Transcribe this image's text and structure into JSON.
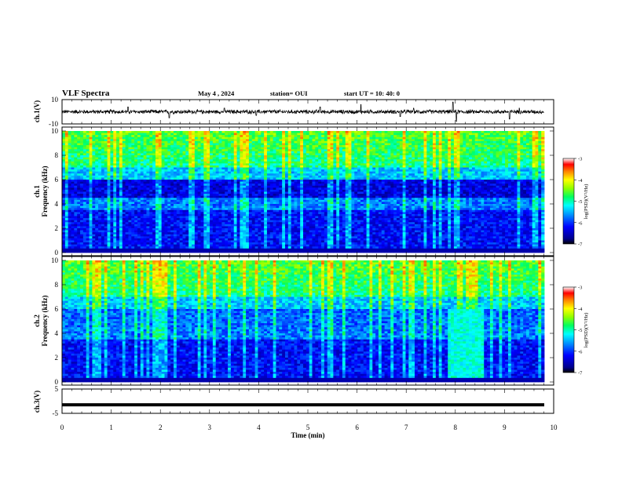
{
  "header": {
    "title": "VLF Spectra",
    "date": "May 4 , 2024",
    "station": "station= OUI",
    "start": "start UT =  10: 40: 0"
  },
  "chart_data": {
    "type": "heatmap",
    "x_axis": {
      "label": "Time (min)",
      "range": [
        0,
        10
      ],
      "ticks": [
        "0",
        "1",
        "2",
        "3",
        "4",
        "5",
        "6",
        "7",
        "8",
        "9",
        "10"
      ]
    },
    "panels": [
      {
        "id": "ch1-waveform",
        "type": "line",
        "ylabel": "ch.1(V)",
        "ylim": [
          -10,
          10
        ],
        "yticks": [
          "10",
          "-10"
        ],
        "baseline": 0,
        "noise_amplitude": 2,
        "spikes": [
          {
            "t": 1.34,
            "v": 4
          },
          {
            "t": 2.18,
            "v": -5
          },
          {
            "t": 3.3,
            "v": 3
          },
          {
            "t": 3.95,
            "v": -3
          },
          {
            "t": 5.25,
            "v": 4
          },
          {
            "t": 6.08,
            "v": 6
          },
          {
            "t": 6.88,
            "v": -4
          },
          {
            "t": 7.15,
            "v": 3
          },
          {
            "t": 7.95,
            "v": 8
          },
          {
            "t": 8.02,
            "v": -8
          },
          {
            "t": 9.1,
            "v": -6
          },
          {
            "t": 9.3,
            "v": 3
          }
        ]
      },
      {
        "id": "ch1-spectrogram",
        "type": "heatmap",
        "ylabel_line1": "ch.1",
        "ylabel_line2": "Frequency (kHz)",
        "ylim": [
          0,
          10
        ],
        "yticks": [
          "0",
          "2",
          "4",
          "6",
          "8",
          "10"
        ],
        "description_bands_khz": {
          "high_activity": [
            7,
            10
          ],
          "gap": [
            4.5,
            6
          ],
          "mid_band": [
            3.5,
            4.2
          ],
          "low_band": [
            0,
            3.5
          ]
        },
        "colorbar": {
          "ticks": [
            "-3",
            "-4",
            "-5",
            "-6",
            "-7"
          ],
          "label": "log(PSD)(V²/Hz)",
          "range": [
            -7,
            -3
          ]
        }
      },
      {
        "id": "ch2-spectrogram",
        "type": "heatmap",
        "ylabel_line1": "ch.2",
        "ylabel_line2": "Frequency (kHz)",
        "ylim": [
          0,
          10
        ],
        "yticks": [
          "0",
          "2",
          "4",
          "6",
          "8",
          "10"
        ],
        "bright_interval_min": [
          7.85,
          8.6
        ],
        "colorbar": {
          "ticks": [
            "-3",
            "-4",
            "-5",
            "-6",
            "-7"
          ],
          "label": "log(PSD)(V²/Hz)",
          "range": [
            -7,
            -3
          ]
        }
      },
      {
        "id": "ch3-trace",
        "type": "line",
        "ylabel": "ch.3(V)",
        "ylim": [
          -5,
          5
        ],
        "yticks": [
          "5",
          "0",
          "-5"
        ],
        "constant_value": -1.5
      }
    ]
  }
}
